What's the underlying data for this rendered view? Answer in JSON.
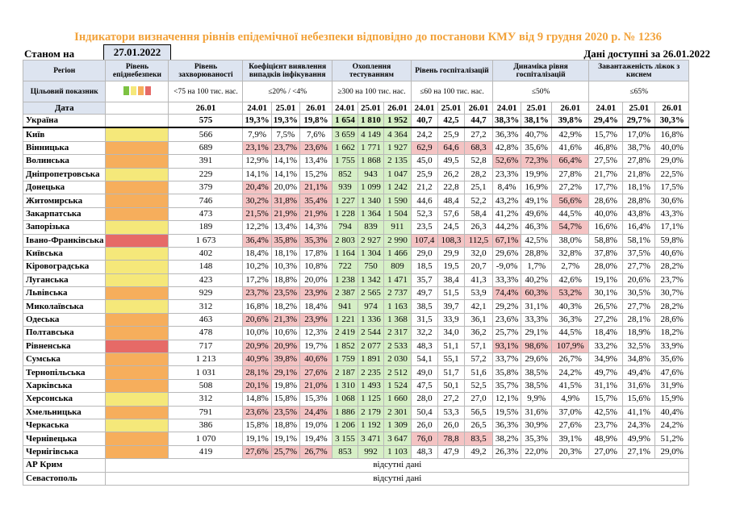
{
  "title": "Індикатори визначення рівнів епідемічної небезпеки відповідно до постанови КМУ від 9 грудня 2020 р. № 1236",
  "as_of_label": "Станом на",
  "as_of_date": "27.01.2022",
  "data_available": "Дані доступні за 26.01.2022",
  "colors": {
    "green": "#d6efc6",
    "red": "#f4c3c3",
    "yellow": "#f5e87a",
    "orange": "#f6ae5c",
    "darkred": "#e66a67",
    "header": "#dde4f0",
    "title": "#f2a23a"
  },
  "headers": {
    "region": "Регіон",
    "level": "Рівень епіднебезпеки",
    "morbidity": "Рівень захворюваності",
    "detection": "Коефіцієнт виявлення випадків інфікування",
    "testing": "Охоплення тестуванням",
    "hosp": "Рівень госпіталізацій",
    "hosp_dyn": "Динаміка рівня госпіталізацій",
    "oxygen": "Завантаженість ліжок з киснем"
  },
  "targets": {
    "label": "Цільовий показник",
    "morbidity": "<75 на 100 тис. нас.",
    "detection": "≤20% / <4%",
    "testing": "≥300 на 100 тис. нас.",
    "hosp": "≤60 на 100 тис. нас.",
    "hosp_dyn": "≤50%",
    "oxygen": "≤65%"
  },
  "date_row": {
    "label": "Дата",
    "morbidity": "26.01",
    "d1": "24.01",
    "d2": "25.01",
    "d3": "26.01"
  },
  "rows": [
    {
      "r": "Україна",
      "lvl": "",
      "m": "575",
      "det": [
        "19,3%",
        "19,3%",
        "19,8%"
      ],
      "t": [
        "1 654",
        "1 810",
        "1 952"
      ],
      "h": [
        "40,7",
        "42,5",
        "44,7"
      ],
      "hd": [
        "38,3%",
        "38,1%",
        "39,8%"
      ],
      "o": [
        "29,4%",
        "29,7%",
        "30,3%"
      ]
    },
    {
      "r": "Київ",
      "lvl": "y",
      "m": "566",
      "det": [
        "7,9%",
        "7,5%",
        "7,6%"
      ],
      "t": [
        "3 659",
        "4 149",
        "4 364"
      ],
      "h": [
        "24,2",
        "25,9",
        "27,2"
      ],
      "hd": [
        "36,3%",
        "40,7%",
        "42,9%"
      ],
      "o": [
        "15,7%",
        "17,0%",
        "16,8%"
      ]
    },
    {
      "r": "Вінницька",
      "lvl": "o",
      "m": "689",
      "det": [
        "23,1%",
        "23,7%",
        "23,6%"
      ],
      "t": [
        "1 662",
        "1 771",
        "1 927"
      ],
      "h": [
        "62,9",
        "64,6",
        "68,3"
      ],
      "hd": [
        "42,8%",
        "35,6%",
        "41,6%"
      ],
      "o": [
        "46,8%",
        "38,7%",
        "40,0%"
      ]
    },
    {
      "r": "Волинська",
      "lvl": "o",
      "m": "391",
      "det": [
        "12,9%",
        "14,1%",
        "13,4%"
      ],
      "t": [
        "1 755",
        "1 868",
        "2 135"
      ],
      "h": [
        "45,0",
        "49,5",
        "52,8"
      ],
      "hd": [
        "52,6%",
        "72,3%",
        "66,4%"
      ],
      "o": [
        "27,5%",
        "27,8%",
        "29,0%"
      ]
    },
    {
      "r": "Дніпропетровська",
      "lvl": "y",
      "m": "229",
      "det": [
        "14,1%",
        "14,1%",
        "15,2%"
      ],
      "t": [
        "852",
        "943",
        "1 047"
      ],
      "h": [
        "25,9",
        "26,2",
        "28,2"
      ],
      "hd": [
        "23,3%",
        "19,9%",
        "27,8%"
      ],
      "o": [
        "21,7%",
        "21,8%",
        "22,5%"
      ]
    },
    {
      "r": "Донецька",
      "lvl": "o",
      "m": "379",
      "det": [
        "20,4%",
        "20,0%",
        "21,1%"
      ],
      "t": [
        "939",
        "1 099",
        "1 242"
      ],
      "h": [
        "21,2",
        "22,8",
        "25,1"
      ],
      "hd": [
        "8,4%",
        "16,9%",
        "27,2%"
      ],
      "o": [
        "17,7%",
        "18,1%",
        "17,5%"
      ]
    },
    {
      "r": "Житомирська",
      "lvl": "o",
      "m": "746",
      "det": [
        "30,2%",
        "31,8%",
        "35,4%"
      ],
      "t": [
        "1 227",
        "1 340",
        "1 590"
      ],
      "h": [
        "44,6",
        "48,4",
        "52,2"
      ],
      "hd": [
        "43,2%",
        "49,1%",
        "56,6%"
      ],
      "o": [
        "28,6%",
        "28,8%",
        "30,6%"
      ]
    },
    {
      "r": "Закарпатська",
      "lvl": "o",
      "m": "473",
      "det": [
        "21,5%",
        "21,9%",
        "21,9%"
      ],
      "t": [
        "1 228",
        "1 364",
        "1 504"
      ],
      "h": [
        "52,3",
        "57,6",
        "58,4"
      ],
      "hd": [
        "41,2%",
        "49,6%",
        "44,5%"
      ],
      "o": [
        "40,0%",
        "43,8%",
        "43,3%"
      ]
    },
    {
      "r": "Запорізька",
      "lvl": "y",
      "m": "189",
      "det": [
        "12,2%",
        "13,4%",
        "14,3%"
      ],
      "t": [
        "794",
        "839",
        "911"
      ],
      "h": [
        "23,5",
        "24,5",
        "26,3"
      ],
      "hd": [
        "44,2%",
        "46,3%",
        "54,7%"
      ],
      "o": [
        "16,6%",
        "16,4%",
        "17,1%"
      ]
    },
    {
      "r": "Івано-Франківська",
      "lvl": "r",
      "m": "1 673",
      "det": [
        "36,4%",
        "35,8%",
        "35,3%"
      ],
      "t": [
        "2 803",
        "2 927",
        "2 990"
      ],
      "h": [
        "107,4",
        "108,3",
        "112,5"
      ],
      "hd": [
        "67,1%",
        "42,5%",
        "38,0%"
      ],
      "o": [
        "58,8%",
        "58,1%",
        "59,8%"
      ]
    },
    {
      "r": "Київська",
      "lvl": "y",
      "m": "402",
      "det": [
        "18,4%",
        "18,1%",
        "17,8%"
      ],
      "t": [
        "1 164",
        "1 304",
        "1 466"
      ],
      "h": [
        "29,0",
        "29,9",
        "32,0"
      ],
      "hd": [
        "29,6%",
        "28,8%",
        "32,8%"
      ],
      "o": [
        "37,8%",
        "37,5%",
        "40,6%"
      ]
    },
    {
      "r": "Кіровоградська",
      "lvl": "y",
      "m": "148",
      "det": [
        "10,2%",
        "10,3%",
        "10,8%"
      ],
      "t": [
        "722",
        "750",
        "809"
      ],
      "h": [
        "18,5",
        "19,5",
        "20,7"
      ],
      "hd": [
        "-9,0%",
        "1,7%",
        "2,7%"
      ],
      "o": [
        "28,0%",
        "27,7%",
        "28,2%"
      ]
    },
    {
      "r": "Луганська",
      "lvl": "y",
      "m": "423",
      "det": [
        "17,2%",
        "18,8%",
        "20,0%"
      ],
      "t": [
        "1 238",
        "1 342",
        "1 471"
      ],
      "h": [
        "35,7",
        "38,4",
        "41,3"
      ],
      "hd": [
        "33,3%",
        "40,2%",
        "42,6%"
      ],
      "o": [
        "19,1%",
        "20,6%",
        "23,7%"
      ]
    },
    {
      "r": "Львівська",
      "lvl": "o",
      "m": "929",
      "det": [
        "23,7%",
        "23,5%",
        "23,9%"
      ],
      "t": [
        "2 387",
        "2 565",
        "2 737"
      ],
      "h": [
        "49,7",
        "51,5",
        "53,9"
      ],
      "hd": [
        "74,4%",
        "60,3%",
        "53,2%"
      ],
      "o": [
        "30,1%",
        "30,5%",
        "30,7%"
      ]
    },
    {
      "r": "Миколаївська",
      "lvl": "y",
      "m": "312",
      "det": [
        "16,8%",
        "18,2%",
        "18,4%"
      ],
      "t": [
        "941",
        "974",
        "1 163"
      ],
      "h": [
        "38,5",
        "39,7",
        "42,1"
      ],
      "hd": [
        "29,2%",
        "31,1%",
        "40,3%"
      ],
      "o": [
        "26,5%",
        "27,7%",
        "28,2%"
      ]
    },
    {
      "r": "Одеська",
      "lvl": "o",
      "m": "463",
      "det": [
        "20,6%",
        "21,3%",
        "23,9%"
      ],
      "t": [
        "1 221",
        "1 336",
        "1 368"
      ],
      "h": [
        "31,5",
        "33,9",
        "36,1"
      ],
      "hd": [
        "23,6%",
        "33,3%",
        "36,3%"
      ],
      "o": [
        "27,2%",
        "28,1%",
        "28,6%"
      ]
    },
    {
      "r": "Полтавська",
      "lvl": "o",
      "m": "478",
      "det": [
        "10,0%",
        "10,6%",
        "12,3%"
      ],
      "t": [
        "2 419",
        "2 544",
        "2 317"
      ],
      "h": [
        "32,2",
        "34,0",
        "36,2"
      ],
      "hd": [
        "25,7%",
        "29,1%",
        "44,5%"
      ],
      "o": [
        "18,4%",
        "18,9%",
        "18,2%"
      ]
    },
    {
      "r": "Рівненська",
      "lvl": "r",
      "m": "717",
      "det": [
        "20,9%",
        "20,9%",
        "19,7%"
      ],
      "t": [
        "1 852",
        "2 077",
        "2 533"
      ],
      "h": [
        "48,3",
        "51,1",
        "57,1"
      ],
      "hd": [
        "93,1%",
        "98,6%",
        "107,9%"
      ],
      "o": [
        "33,2%",
        "32,5%",
        "33,9%"
      ]
    },
    {
      "r": "Сумська",
      "lvl": "o",
      "m": "1 213",
      "det": [
        "40,9%",
        "39,8%",
        "40,6%"
      ],
      "t": [
        "1 759",
        "1 891",
        "2 030"
      ],
      "h": [
        "54,1",
        "55,1",
        "57,2"
      ],
      "hd": [
        "33,7%",
        "29,6%",
        "26,7%"
      ],
      "o": [
        "34,9%",
        "34,8%",
        "35,6%"
      ]
    },
    {
      "r": "Тернопільська",
      "lvl": "o",
      "m": "1 031",
      "det": [
        "28,1%",
        "29,1%",
        "27,6%"
      ],
      "t": [
        "2 187",
        "2 235",
        "2 512"
      ],
      "h": [
        "49,0",
        "51,7",
        "51,6"
      ],
      "hd": [
        "35,8%",
        "38,5%",
        "24,2%"
      ],
      "o": [
        "49,7%",
        "49,4%",
        "47,6%"
      ]
    },
    {
      "r": "Харківська",
      "lvl": "o",
      "m": "508",
      "det": [
        "20,1%",
        "19,8%",
        "21,0%"
      ],
      "t": [
        "1 310",
        "1 493",
        "1 524"
      ],
      "h": [
        "47,5",
        "50,1",
        "52,5"
      ],
      "hd": [
        "35,7%",
        "38,5%",
        "41,5%"
      ],
      "o": [
        "31,1%",
        "31,6%",
        "31,9%"
      ]
    },
    {
      "r": "Херсонська",
      "lvl": "y",
      "m": "312",
      "det": [
        "14,8%",
        "15,8%",
        "15,3%"
      ],
      "t": [
        "1 068",
        "1 125",
        "1 660"
      ],
      "h": [
        "28,0",
        "27,2",
        "27,0"
      ],
      "hd": [
        "12,1%",
        "9,9%",
        "4,9%"
      ],
      "o": [
        "15,7%",
        "15,6%",
        "15,9%"
      ]
    },
    {
      "r": "Хмельницька",
      "lvl": "o",
      "m": "791",
      "det": [
        "23,6%",
        "23,5%",
        "24,4%"
      ],
      "t": [
        "1 886",
        "2 179",
        "2 301"
      ],
      "h": [
        "50,4",
        "53,3",
        "56,5"
      ],
      "hd": [
        "19,5%",
        "31,6%",
        "37,0%"
      ],
      "o": [
        "42,5%",
        "41,1%",
        "40,4%"
      ]
    },
    {
      "r": "Черкаська",
      "lvl": "y",
      "m": "386",
      "det": [
        "15,8%",
        "18,8%",
        "19,0%"
      ],
      "t": [
        "1 206",
        "1 192",
        "1 309"
      ],
      "h": [
        "26,0",
        "26,0",
        "26,5"
      ],
      "hd": [
        "36,3%",
        "30,9%",
        "27,6%"
      ],
      "o": [
        "23,7%",
        "24,3%",
        "24,2%"
      ]
    },
    {
      "r": "Чернівецька",
      "lvl": "o",
      "m": "1 070",
      "det": [
        "19,1%",
        "19,1%",
        "19,4%"
      ],
      "t": [
        "3 155",
        "3 471",
        "3 647"
      ],
      "h": [
        "76,0",
        "78,8",
        "83,5"
      ],
      "hd": [
        "38,2%",
        "35,3%",
        "39,1%"
      ],
      "o": [
        "48,9%",
        "49,9%",
        "51,2%"
      ]
    },
    {
      "r": "Чернігівська",
      "lvl": "o",
      "m": "419",
      "det": [
        "27,6%",
        "25,7%",
        "26,7%"
      ],
      "t": [
        "853",
        "992",
        "1 103"
      ],
      "h": [
        "48,3",
        "47,9",
        "49,2"
      ],
      "hd": [
        "26,3%",
        "22,0%",
        "20,3%"
      ],
      "o": [
        "27,0%",
        "27,1%",
        "29,0%"
      ]
    }
  ],
  "no_data_rows": [
    {
      "r": "АР Крим",
      "text": "відсутні дані"
    },
    {
      "r": "Севастополь",
      "text": "відсутні дані"
    }
  ]
}
